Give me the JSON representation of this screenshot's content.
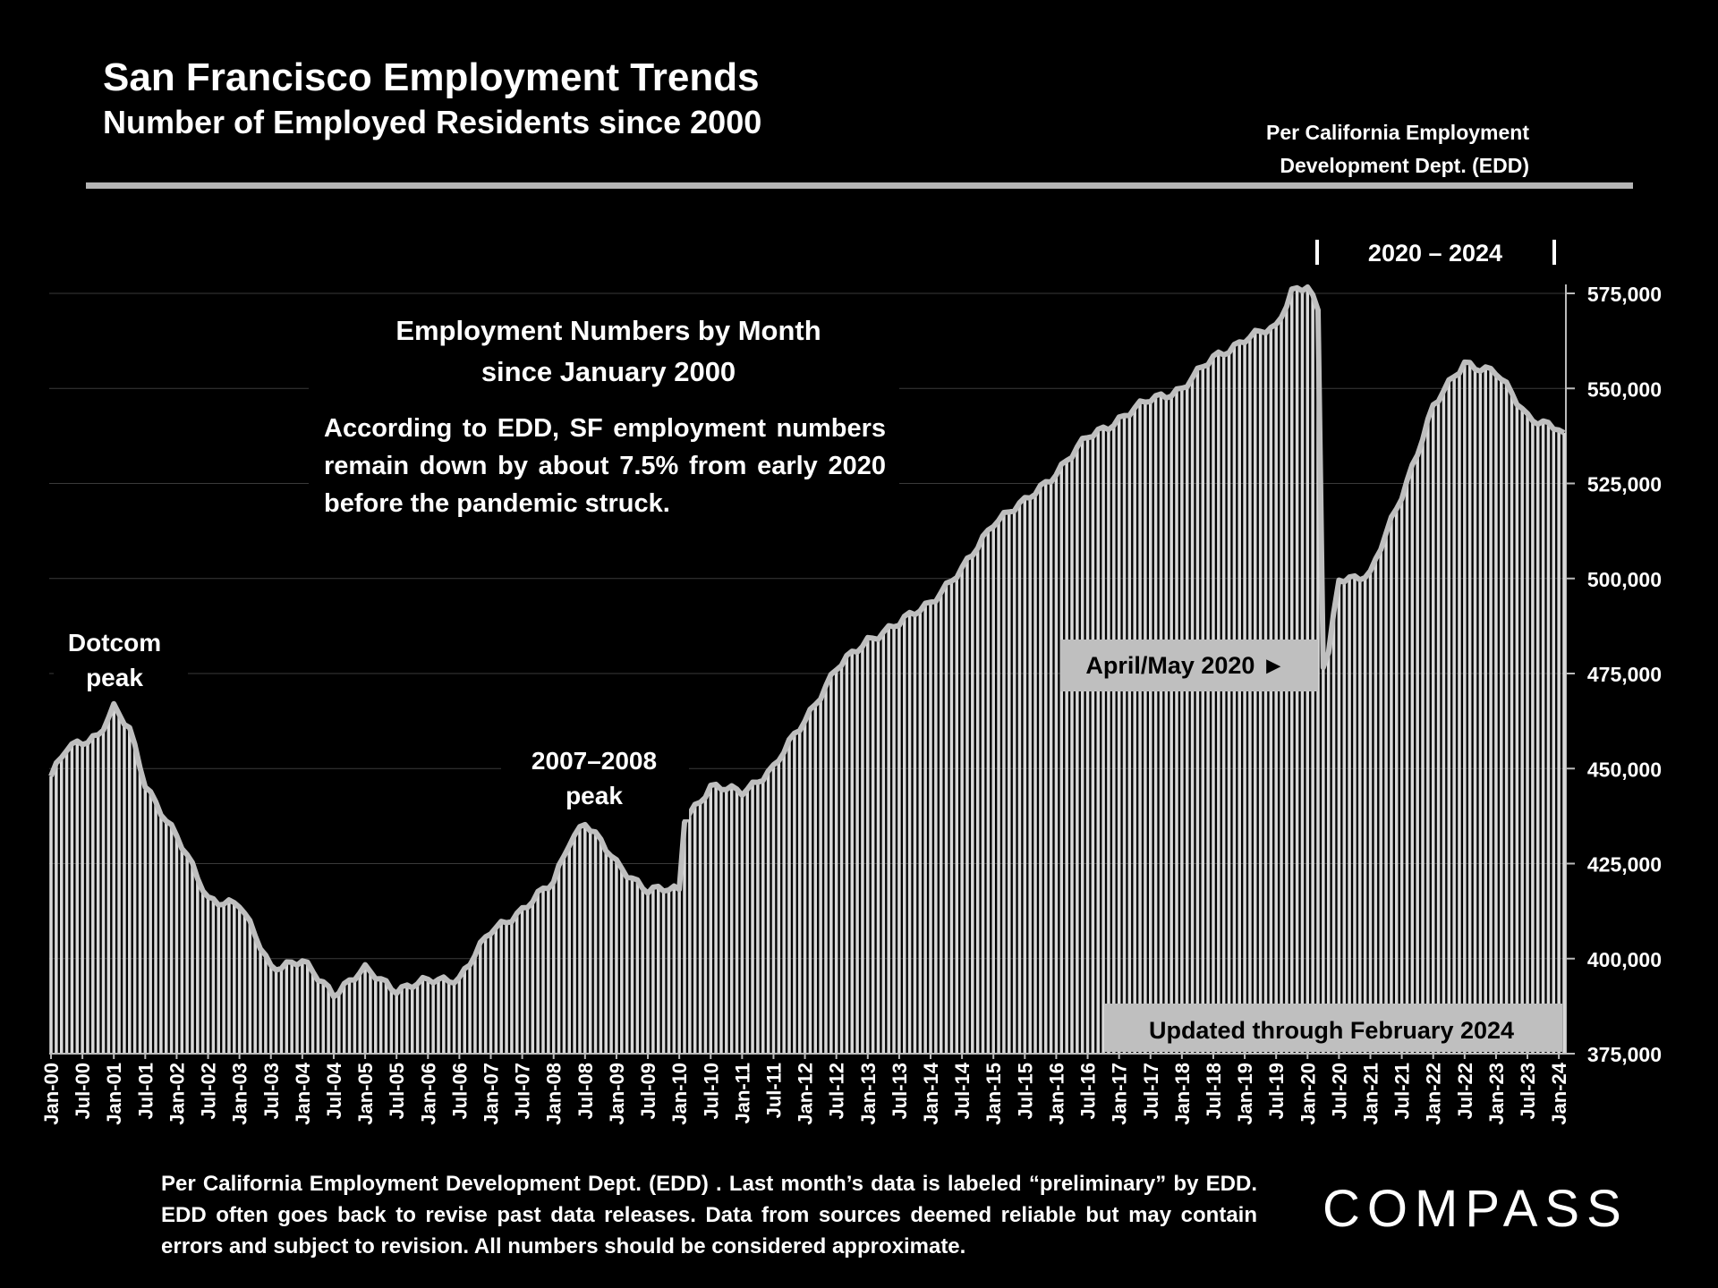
{
  "header": {
    "title": "San Francisco Employment Trends",
    "subtitle": "Number of Employed Residents since 2000",
    "source_line1": "Per California Employment",
    "source_line2": "Development Dept. (EDD)"
  },
  "footer": {
    "note": "Per California Employment Development Dept. (EDD) . Last month’s data is labeled “preliminary” by EDD. EDD often goes back to revise past data releases. Data from sources deemed reliable but may contain errors and subject to revision. All numbers should be considered approximate.",
    "logo": "COMPASS"
  },
  "colors": {
    "background": "#000000",
    "bars": "#d9d9d9",
    "line": "#bfbfbf",
    "callout_box": "#bfbfbf"
  },
  "chart_data": {
    "type": "bar",
    "title": "Employment Numbers by Month",
    "subtitle": "since January 2000",
    "xlabel": "",
    "ylabel": "",
    "ylim": [
      375000,
      575000
    ],
    "yticks": [
      "375,000",
      "400,000",
      "425,000",
      "450,000",
      "475,000",
      "500,000",
      "525,000",
      "550,000",
      "575,000"
    ],
    "grid": true,
    "legend": "none",
    "series": [
      {
        "name": "Employed Residents",
        "start": "Jan-00",
        "frequency": "monthly",
        "anchors": [
          [
            "Jan-00",
            448000
          ],
          [
            "Apr-00",
            455000
          ],
          [
            "Oct-00",
            459000
          ],
          [
            "Jan-01",
            466000
          ],
          [
            "Apr-01",
            460000
          ],
          [
            "Jul-01",
            446000
          ],
          [
            "Jan-02",
            432000
          ],
          [
            "Jul-02",
            416000
          ],
          [
            "Jan-03",
            414000
          ],
          [
            "Jul-03",
            398000
          ],
          [
            "Jan-04",
            399000
          ],
          [
            "Jul-04",
            391000
          ],
          [
            "Jan-05",
            397000
          ],
          [
            "Jul-05",
            392000
          ],
          [
            "Jan-06",
            394000
          ],
          [
            "Jul-06",
            395000
          ],
          [
            "Jan-07",
            407000
          ],
          [
            "Jul-07",
            413000
          ],
          [
            "Jan-08",
            420000
          ],
          [
            "Apr-08",
            431000
          ],
          [
            "Jul-08",
            436000
          ],
          [
            "Jan-09",
            425000
          ],
          [
            "Jul-09",
            418000
          ],
          [
            "Jan-10",
            418000
          ],
          [
            "Feb-10",
            437000
          ],
          [
            "Jul-10",
            445000
          ],
          [
            "Jan-11",
            444000
          ],
          [
            "Jul-11",
            450000
          ],
          [
            "Jan-12",
            463000
          ],
          [
            "Jul-12",
            476000
          ],
          [
            "Jan-13",
            484000
          ],
          [
            "Jul-13",
            488000
          ],
          [
            "Jan-14",
            494000
          ],
          [
            "Jul-14",
            502000
          ],
          [
            "Jan-15",
            515000
          ],
          [
            "Jul-15",
            520000
          ],
          [
            "Jan-16",
            528000
          ],
          [
            "Jul-16",
            537000
          ],
          [
            "Jan-17",
            542000
          ],
          [
            "Jul-17",
            547000
          ],
          [
            "Jan-18",
            550000
          ],
          [
            "Jul-18",
            558000
          ],
          [
            "Jan-19",
            563000
          ],
          [
            "Jul-19",
            566000
          ],
          [
            "Oct-19",
            576000
          ],
          [
            "Jan-20",
            577000
          ],
          [
            "Mar-20",
            570000
          ],
          [
            "Apr-20",
            477000
          ],
          [
            "May-20",
            480000
          ],
          [
            "Jul-20",
            500000
          ],
          [
            "Jan-21",
            501000
          ],
          [
            "Jul-21",
            522000
          ],
          [
            "Jan-22",
            545000
          ],
          [
            "Jul-22",
            557000
          ],
          [
            "Jan-23",
            554000
          ],
          [
            "Jul-23",
            543000
          ],
          [
            "Jan-24",
            539000
          ],
          [
            "Feb-24",
            537000
          ]
        ]
      }
    ],
    "x_tick_labels": [
      "Jan-00",
      "Jul-00",
      "Jan-01",
      "Jul-01",
      "Jan-02",
      "Jul-02",
      "Jan-03",
      "Jul-03",
      "Jan-04",
      "Jul-04",
      "Jan-05",
      "Jul-05",
      "Jan-06",
      "Jul-06",
      "Jan-07",
      "Jul-07",
      "Jan-08",
      "Jul-08",
      "Jan-09",
      "Jul-09",
      "Jan-10",
      "Jul-10",
      "Jan-11",
      "Jul-11",
      "Jan-12",
      "Jul-12",
      "Jan-13",
      "Jul-13",
      "Jan-14",
      "Jul-14",
      "Jan-15",
      "Jul-15",
      "Jan-16",
      "Jul-16",
      "Jan-17",
      "Jul-17",
      "Jan-18",
      "Jul-18",
      "Jan-19",
      "Jul-19",
      "Jan-20",
      "Jul-20",
      "Jan-21",
      "Jul-21",
      "Jan-22",
      "Jul-22",
      "Jan-23",
      "Jul-23",
      "Jan-24"
    ],
    "annotations": {
      "summary_title_1": "Employment Numbers by Month",
      "summary_title_2": "since January 2000",
      "summary_body": "According to EDD, SF employment numbers remain down by about 7.5% from early 2020 before the pandemic struck.",
      "dotcom_1": "Dotcom",
      "dotcom_2": "peak",
      "peak0708_1": "2007–2008",
      "peak0708_2": "peak",
      "range_label": "2020 – 2024",
      "april_may": "April/May 2020 ►",
      "updated": "Updated through February 2024"
    }
  }
}
